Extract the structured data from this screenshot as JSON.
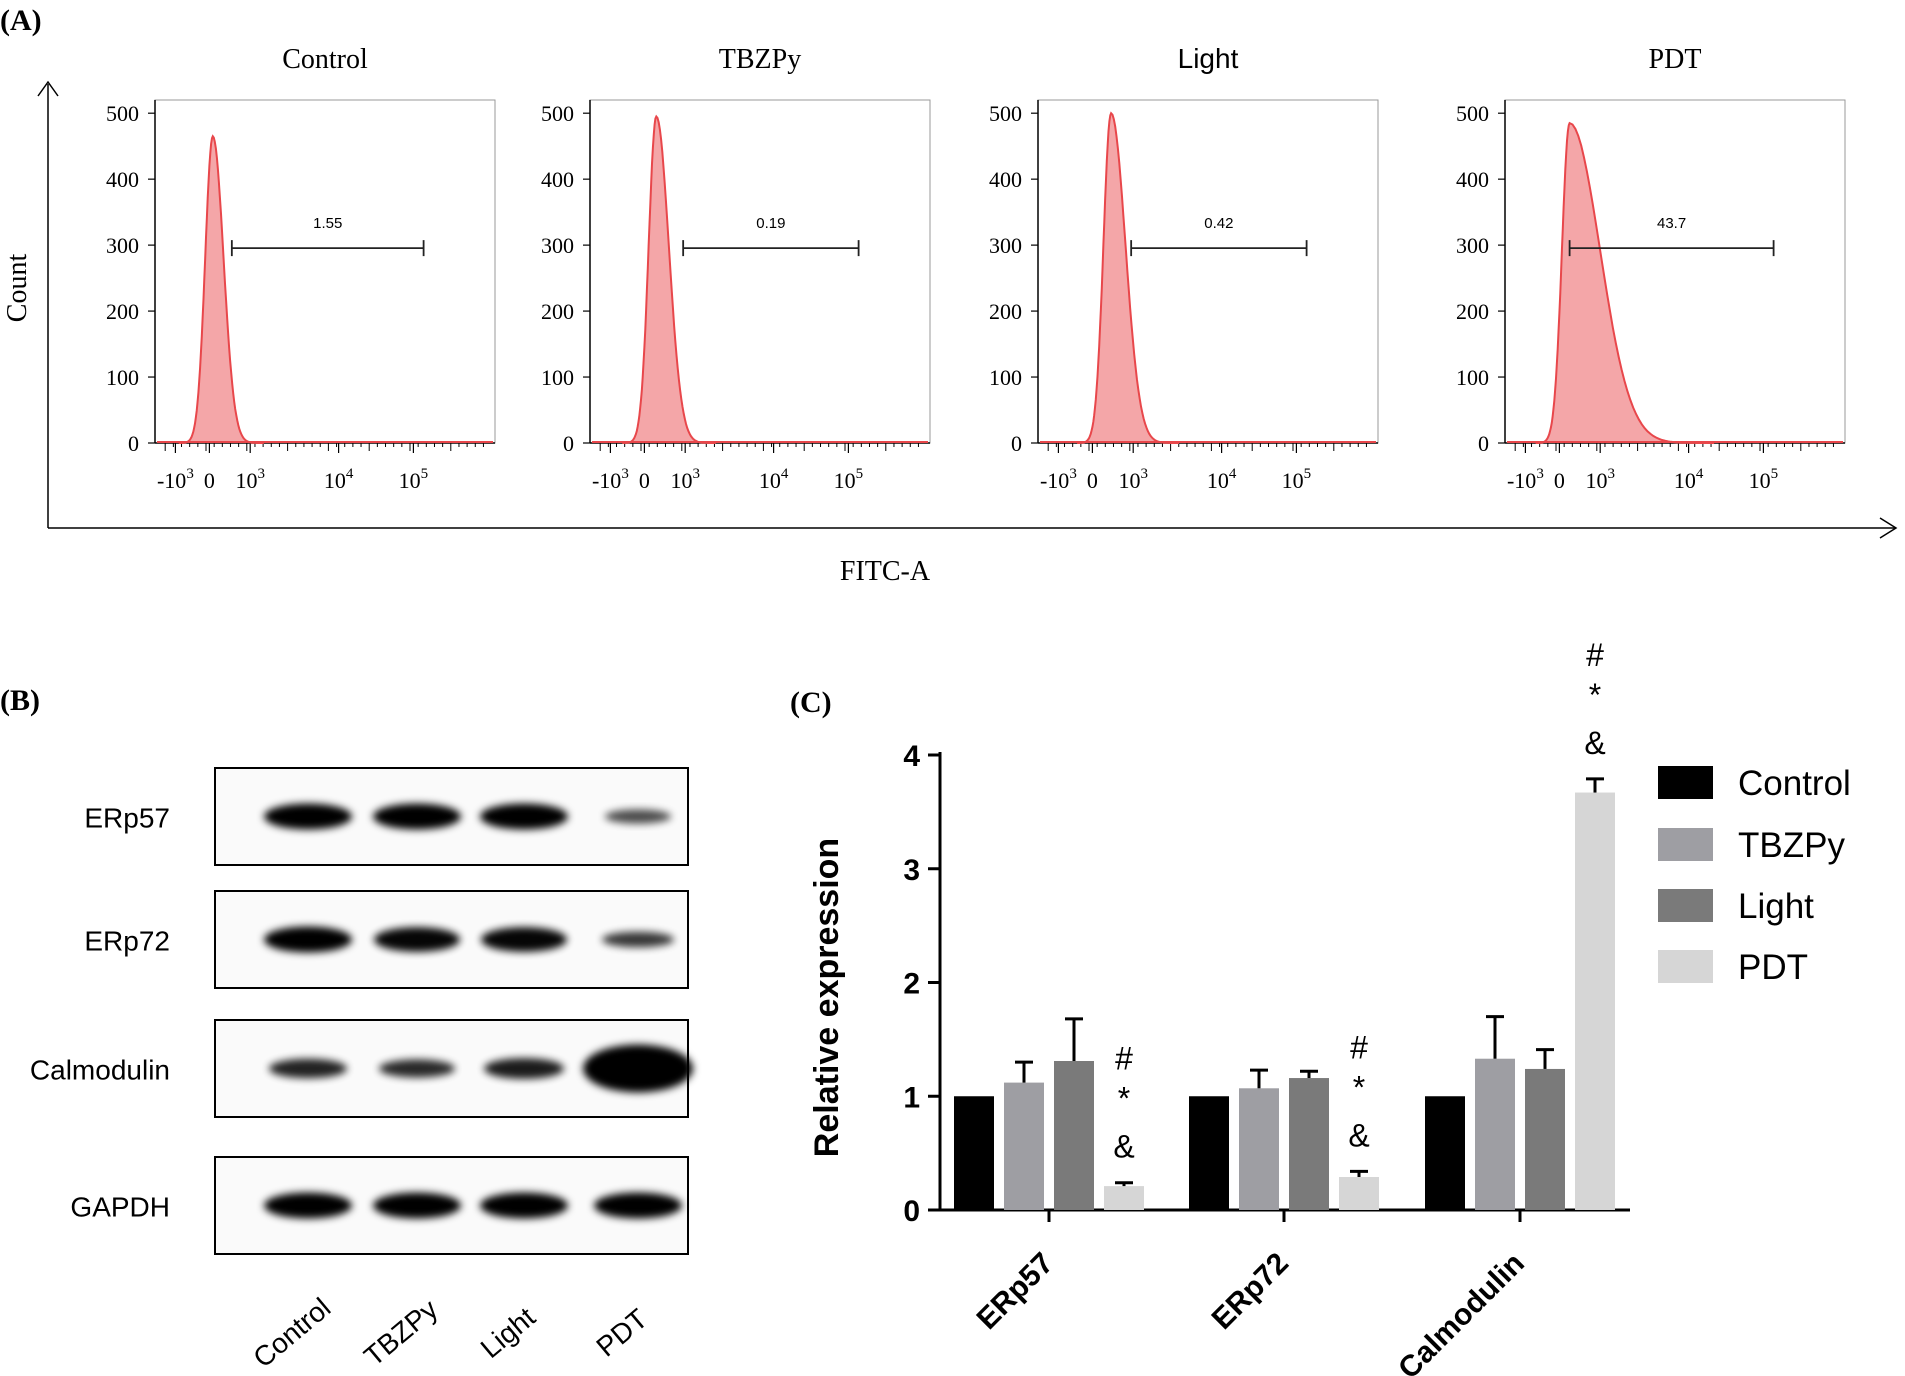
{
  "panel_labels": {
    "a": "(A)",
    "b": "(B)",
    "c": "(C)"
  },
  "flow": {
    "y_axis_label": "Count",
    "x_axis_label": "FITC-A",
    "y_ticks": [
      "0",
      "100",
      "200",
      "300",
      "400",
      "500"
    ],
    "x_tick_labels": [
      {
        "base": "-10",
        "exp": "3"
      },
      {
        "base": "0",
        "exp": ""
      },
      {
        "base": "10",
        "exp": "3"
      },
      {
        "base": "10",
        "exp": "4"
      },
      {
        "base": "10",
        "exp": "5"
      }
    ],
    "peak_color": "#e8474b",
    "fill_color": "#f4a6a8",
    "panels": [
      {
        "title": "Control",
        "gate_value": "1.55",
        "peak_count": 465,
        "gate_start": 550
      },
      {
        "title": "TBZPy",
        "gate_value": "0.19",
        "peak_count": 495,
        "gate_start": 950
      },
      {
        "title": "Light",
        "gate_value": "0.42",
        "peak_count": 500,
        "gate_start": 950
      },
      {
        "title": "PDT",
        "gate_value": "43.7",
        "peak_count": 485,
        "gate_start": 250
      }
    ]
  },
  "western": {
    "rows": [
      "ERp57",
      "ERp72",
      "Calmodulin",
      "GAPDH"
    ],
    "lanes": [
      "Control",
      "TBZPy",
      "Light",
      "PDT"
    ],
    "band_intensity": [
      [
        1.0,
        1.0,
        1.0,
        0.45
      ],
      [
        1.0,
        0.95,
        0.95,
        0.6
      ],
      [
        0.75,
        0.7,
        0.8,
        1.8
      ],
      [
        1.0,
        1.0,
        1.0,
        1.0
      ]
    ]
  },
  "chart_data": {
    "type": "bar",
    "ylabel": "Relative expression",
    "xlabel": "",
    "ylim": [
      0,
      4
    ],
    "yticks": [
      0,
      1,
      2,
      3,
      4
    ],
    "categories": [
      "ERp57",
      "ERp72",
      "Calmodulin"
    ],
    "series": [
      {
        "name": "Control",
        "color": "#000000",
        "values": [
          1.0,
          1.0,
          1.0
        ],
        "errors": [
          0,
          0,
          0
        ]
      },
      {
        "name": "TBZPy",
        "color": "#9e9ea3",
        "values": [
          1.12,
          1.07,
          1.33
        ],
        "errors": [
          0.18,
          0.16,
          0.37
        ]
      },
      {
        "name": "Light",
        "color": "#7a7a7a",
        "values": [
          1.31,
          1.16,
          1.24
        ],
        "errors": [
          0.37,
          0.06,
          0.17
        ]
      },
      {
        "name": "PDT",
        "color": "#d6d6d6",
        "values": [
          0.21,
          0.29,
          3.67
        ],
        "errors": [
          0.03,
          0.05,
          0.12
        ]
      }
    ],
    "significance": [
      {
        "category": "ERp57",
        "series": "PDT",
        "marks": [
          "#",
          "*",
          "&"
        ]
      },
      {
        "category": "ERp72",
        "series": "PDT",
        "marks": [
          "#",
          "*",
          "&"
        ]
      },
      {
        "category": "Calmodulin",
        "series": "PDT",
        "marks": [
          "#",
          "*",
          "&"
        ]
      }
    ]
  }
}
